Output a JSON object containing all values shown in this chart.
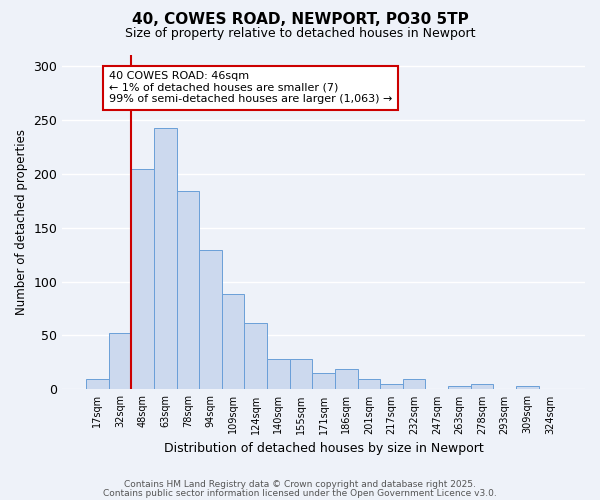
{
  "title": "40, COWES ROAD, NEWPORT, PO30 5TP",
  "subtitle": "Size of property relative to detached houses in Newport",
  "xlabel": "Distribution of detached houses by size in Newport",
  "ylabel": "Number of detached properties",
  "bar_labels": [
    "17sqm",
    "32sqm",
    "48sqm",
    "63sqm",
    "78sqm",
    "94sqm",
    "109sqm",
    "124sqm",
    "140sqm",
    "155sqm",
    "171sqm",
    "186sqm",
    "201sqm",
    "217sqm",
    "232sqm",
    "247sqm",
    "263sqm",
    "278sqm",
    "293sqm",
    "309sqm",
    "324sqm"
  ],
  "bar_values": [
    10,
    52,
    204,
    242,
    184,
    129,
    88,
    62,
    28,
    28,
    15,
    19,
    10,
    5,
    10,
    0,
    3,
    5,
    0,
    3,
    0
  ],
  "bar_color": "#ccd9ee",
  "bar_edge_color": "#6a9fd8",
  "vline_x": 2.0,
  "vline_color": "#cc0000",
  "annotation_text": "40 COWES ROAD: 46sqm\n← 1% of detached houses are smaller (7)\n99% of semi-detached houses are larger (1,063) →",
  "annotation_box_color": "#cc0000",
  "ylim": [
    0,
    310
  ],
  "yticks": [
    0,
    50,
    100,
    150,
    200,
    250,
    300
  ],
  "background_color": "#eef2f9",
  "grid_color": "#ffffff",
  "footer1": "Contains HM Land Registry data © Crown copyright and database right 2025.",
  "footer2": "Contains public sector information licensed under the Open Government Licence v3.0."
}
